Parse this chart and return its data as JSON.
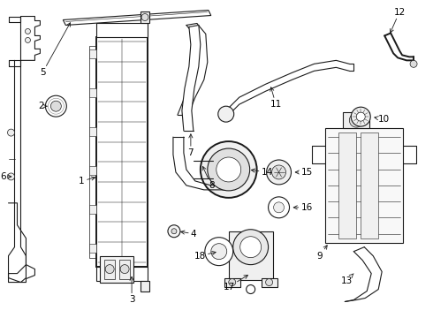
{
  "bg_color": "#ffffff",
  "line_color": "#1a1a1a",
  "label_color": "#000000",
  "label_fs": 7.5,
  "lw_thin": 0.5,
  "lw_med": 0.8,
  "lw_thick": 1.4
}
